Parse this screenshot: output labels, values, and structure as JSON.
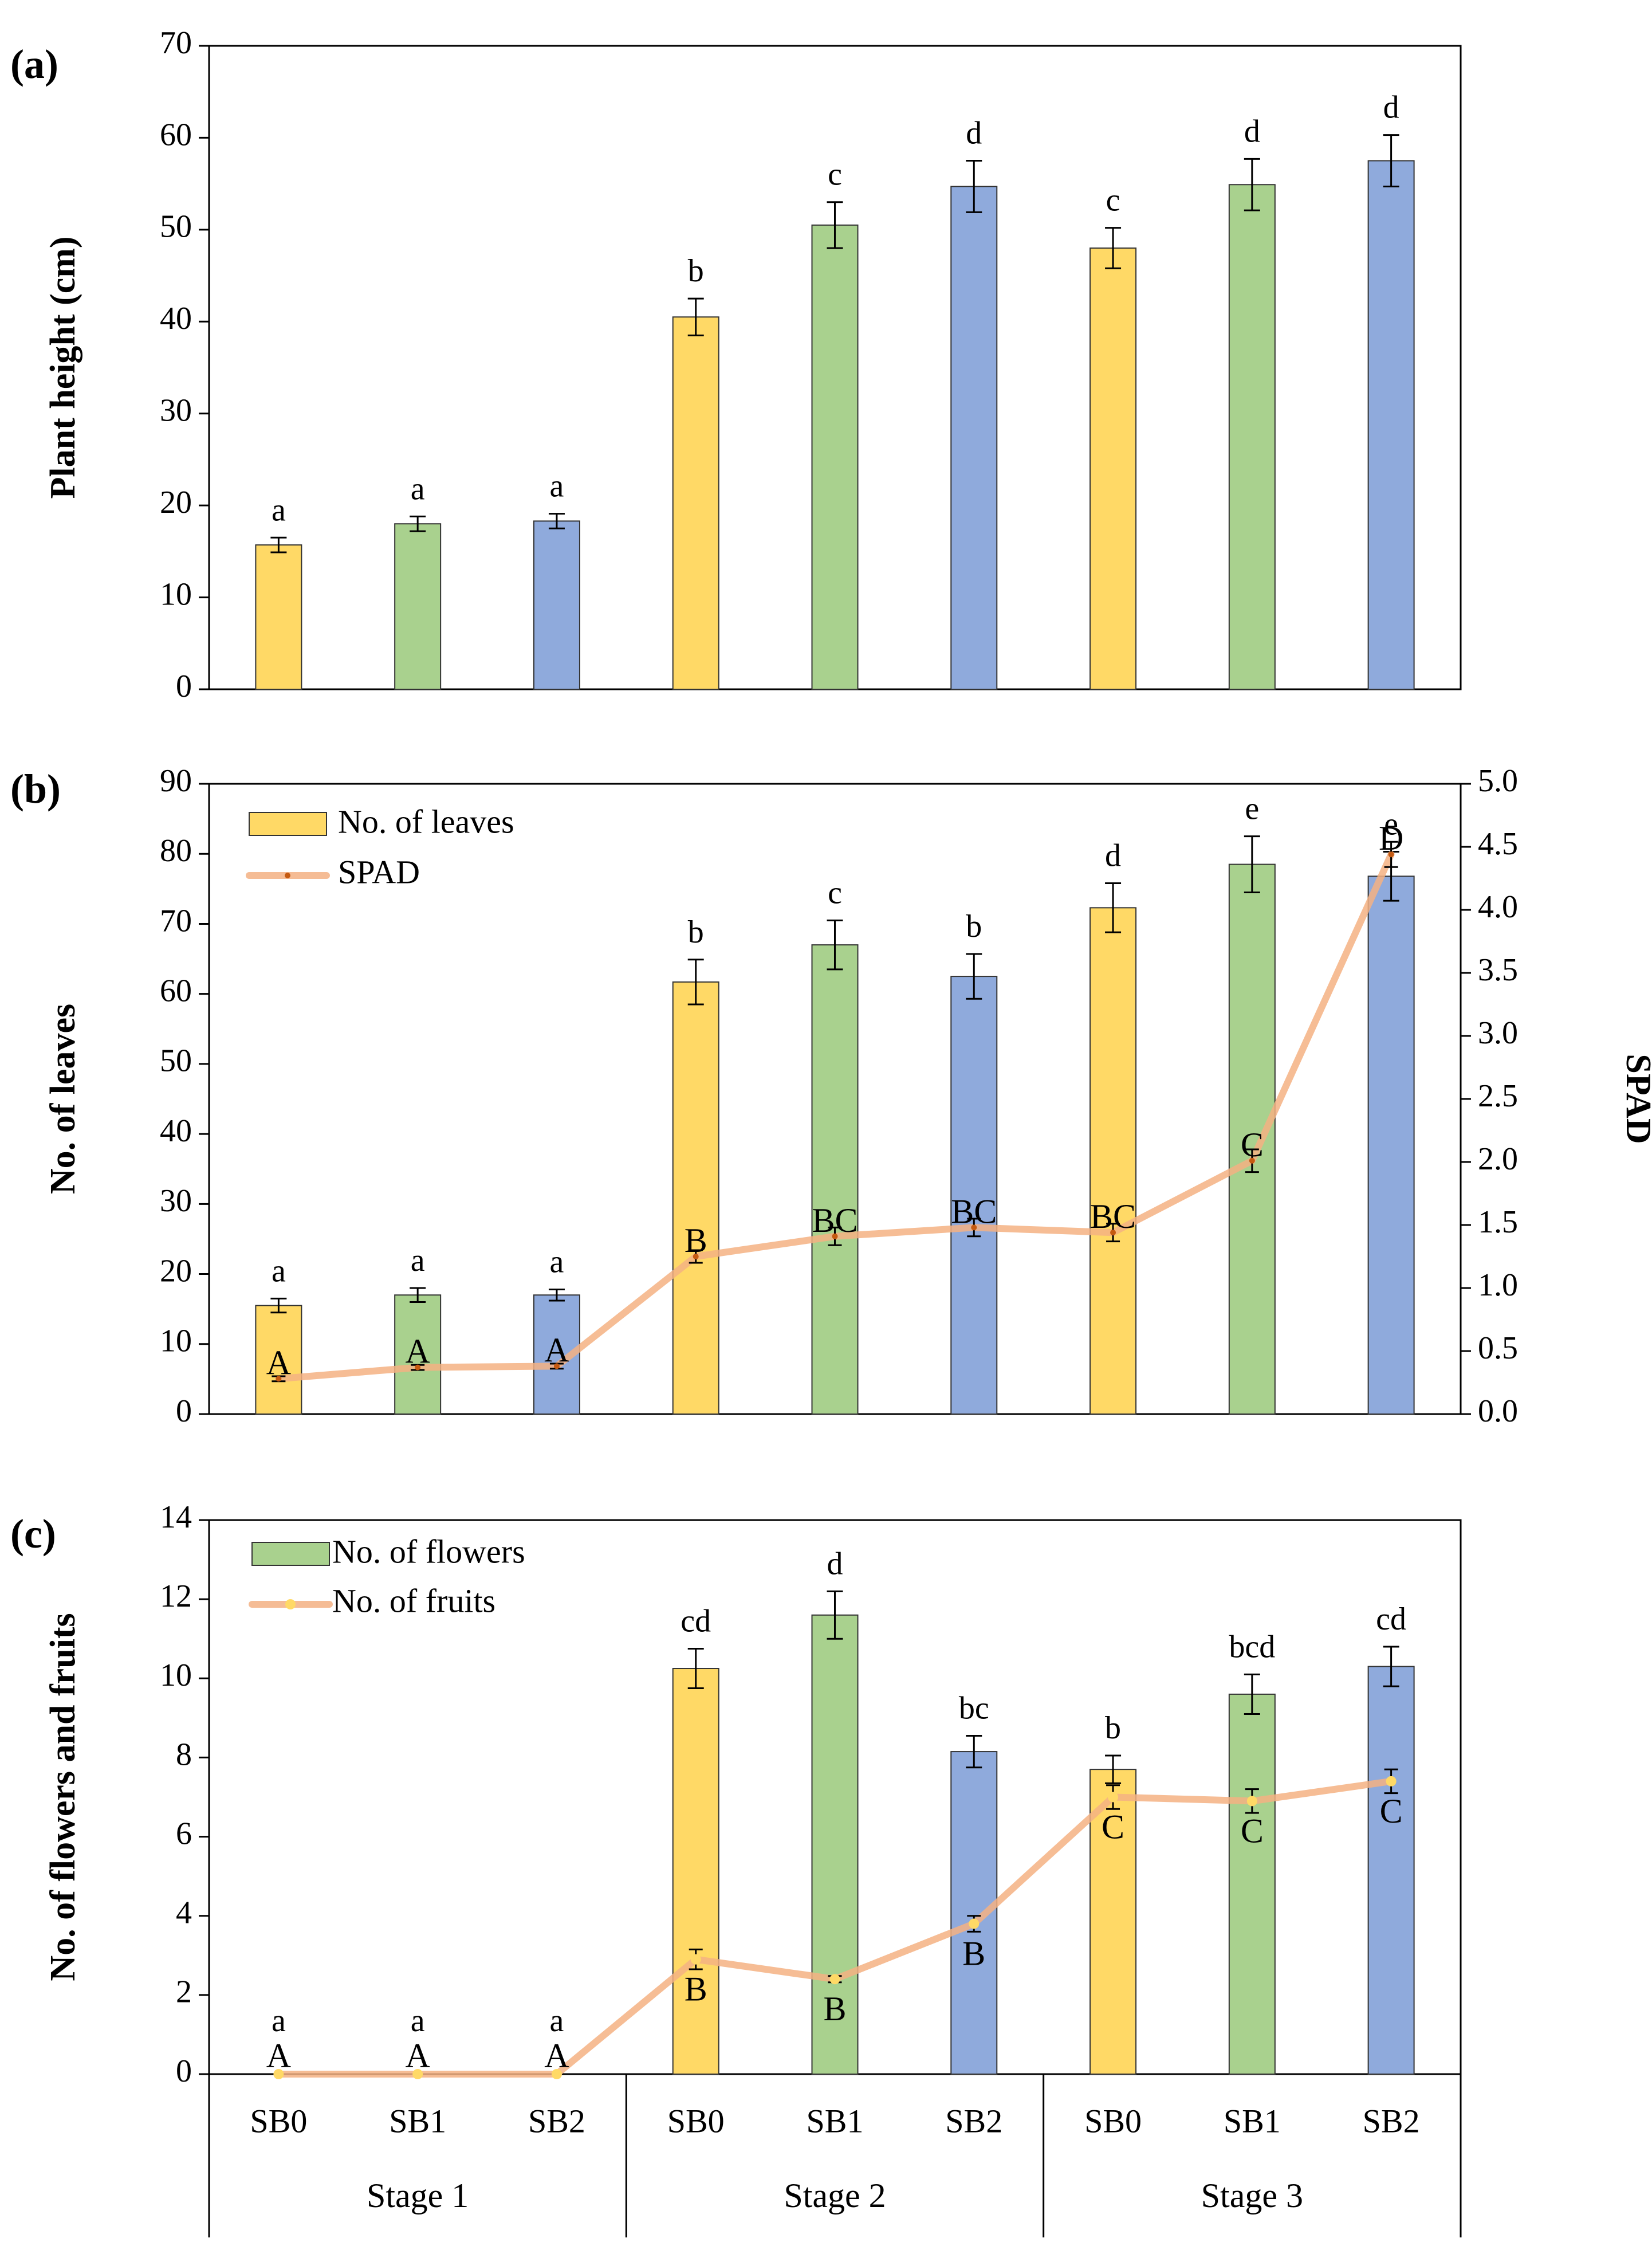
{
  "colors": {
    "SB0": "#FFD966",
    "SB1": "#A9D18E",
    "SB2": "#8FAADC",
    "bar_stroke": "#333333",
    "line": "#F4B183",
    "line_marker_spad": "#C55A11",
    "line_marker_fruits": "#FFD966"
  },
  "x_axis": {
    "treatments": [
      "SB0",
      "SB1",
      "SB2",
      "SB0",
      "SB1",
      "SB2",
      "SB0",
      "SB1",
      "SB2"
    ],
    "stages": [
      "Stage 1",
      "Stage 2",
      "Stage 3"
    ]
  },
  "chart_data": [
    {
      "type": "bar",
      "panel_label": "(a)",
      "ylabel": "Plant height (cm)",
      "ylim": [
        0,
        70
      ],
      "yticks": [
        0,
        10,
        20,
        30,
        40,
        50,
        60,
        70
      ],
      "groups": [
        "SB0",
        "SB1",
        "SB2",
        "SB0",
        "SB1",
        "SB2",
        "SB0",
        "SB1",
        "SB2"
      ],
      "values": [
        15.7,
        18.0,
        18.3,
        40.5,
        50.5,
        54.7,
        48.0,
        54.9,
        57.5
      ],
      "errors": [
        0.8,
        0.8,
        0.8,
        2.0,
        2.5,
        2.8,
        2.2,
        2.8,
        2.8
      ],
      "letters": [
        "a",
        "a",
        "a",
        "b",
        "c",
        "d",
        "c",
        "d",
        "d"
      ]
    },
    {
      "type": "bar+line",
      "panel_label": "(b)",
      "ylabel": "No. of leaves",
      "y2label": "SPAD",
      "ylim": [
        0,
        90
      ],
      "yticks": [
        0,
        10,
        20,
        30,
        40,
        50,
        60,
        70,
        80,
        90
      ],
      "y2lim": [
        0,
        5
      ],
      "y2ticks": [
        "0.0",
        "0.5",
        "1.0",
        "1.5",
        "2.0",
        "2.5",
        "3.0",
        "3.5",
        "4.0",
        "4.5",
        "5.0"
      ],
      "legend": [
        "No. of leaves",
        "SPAD"
      ],
      "groups": [
        "SB0",
        "SB1",
        "SB2",
        "SB0",
        "SB1",
        "SB2",
        "SB0",
        "SB1",
        "SB2"
      ],
      "values": [
        15.5,
        17.0,
        17.0,
        61.7,
        67.0,
        62.5,
        72.3,
        78.5,
        76.8
      ],
      "errors": [
        1.0,
        1.0,
        0.8,
        3.2,
        3.5,
        3.2,
        3.5,
        4.0,
        3.5
      ],
      "letters": [
        "a",
        "a",
        "a",
        "b",
        "c",
        "b",
        "d",
        "e",
        "e"
      ],
      "line_values": [
        0.28,
        0.37,
        0.38,
        1.25,
        1.41,
        1.48,
        1.44,
        2.01,
        4.44
      ],
      "line_errors": [
        0.02,
        0.02,
        0.02,
        0.05,
        0.07,
        0.07,
        0.07,
        0.09,
        0.1
      ],
      "line_letters": [
        "A",
        "A",
        "A",
        "B",
        "BC",
        "BC",
        "BC",
        "C",
        "D"
      ]
    },
    {
      "type": "bar+line",
      "panel_label": "(c)",
      "ylabel": "No. of flowers and fruits",
      "ylim": [
        0,
        14
      ],
      "yticks": [
        0,
        2,
        4,
        6,
        8,
        10,
        12,
        14
      ],
      "legend": [
        "No. of flowers",
        "No. of fruits"
      ],
      "groups": [
        "SB0",
        "SB1",
        "SB2",
        "SB0",
        "SB1",
        "SB2",
        "SB0",
        "SB1",
        "SB2"
      ],
      "values": [
        0,
        0,
        0,
        10.25,
        11.6,
        8.15,
        7.7,
        9.6,
        10.3
      ],
      "errors": [
        0,
        0,
        0,
        0.5,
        0.6,
        0.4,
        0.35,
        0.5,
        0.5
      ],
      "letters": [
        "a",
        "a",
        "a",
        "cd",
        "d",
        "bc",
        "b",
        "bcd",
        "cd"
      ],
      "line_values": [
        0,
        0,
        0,
        2.9,
        2.4,
        3.8,
        7.0,
        6.9,
        7.4
      ],
      "line_errors": [
        0,
        0,
        0,
        0.25,
        0.08,
        0.2,
        0.3,
        0.3,
        0.3
      ],
      "line_letters": [
        "A",
        "A",
        "A",
        "B",
        "B",
        "B",
        "C",
        "C",
        "C"
      ]
    }
  ]
}
